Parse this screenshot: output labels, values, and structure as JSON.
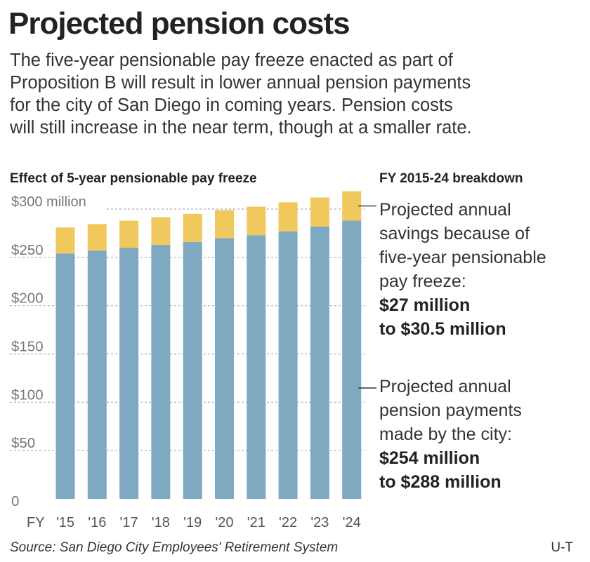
{
  "title": "Projected pension costs",
  "description_lines": [
    "The five-year pensionable pay freeze enacted as part of",
    "Proposition B will result in lower annual pension payments",
    "for the city of San Diego in coming years. Pension costs",
    "will still increase in the near term, though at a smaller rate."
  ],
  "chart_heading": "Effect of 5-year pensionable pay freeze",
  "breakdown_heading": "FY 2015-24 breakdown",
  "annotations": {
    "savings_lines": [
      "Projected annual",
      "savings because of",
      "five-year pensionable",
      "pay freeze:"
    ],
    "savings_value_lines": [
      "$27 million",
      "to $30.5 million"
    ],
    "payments_lines": [
      "Projected annual",
      "pension payments",
      "made by the city:"
    ],
    "payments_value_lines": [
      "$254 million",
      "to $288 million"
    ]
  },
  "source": "Source: San Diego City Employees' Retirement System",
  "credit": "U-T",
  "colors": {
    "payments": "#7fa8c1",
    "savings": "#f1c85d",
    "grid": "#bbbbbb"
  },
  "chart_data": {
    "type": "bar",
    "stacked": true,
    "x_prefix": "FY",
    "categories": [
      "'15",
      "'16",
      "'17",
      "'18",
      "'19",
      "'20",
      "'21",
      "'22",
      "'23",
      "'24"
    ],
    "series": [
      {
        "values": [
          254,
          257,
          260,
          263,
          266,
          270,
          273,
          277,
          282,
          288
        ]
      },
      {
        "values": [
          27,
          27.5,
          28,
          28.5,
          29,
          29,
          29.5,
          30,
          30,
          30.5
        ]
      }
    ],
    "ylim": [
      0,
      300
    ],
    "yticks": [
      {
        "value": 0,
        "label": "0"
      },
      {
        "value": 50,
        "label": "$50"
      },
      {
        "value": 100,
        "label": "$100"
      },
      {
        "value": 150,
        "label": "$150"
      },
      {
        "value": 200,
        "label": "$200"
      },
      {
        "value": 250,
        "label": "$250"
      },
      {
        "value": 300,
        "label": "$300 million"
      }
    ],
    "grid": true
  }
}
